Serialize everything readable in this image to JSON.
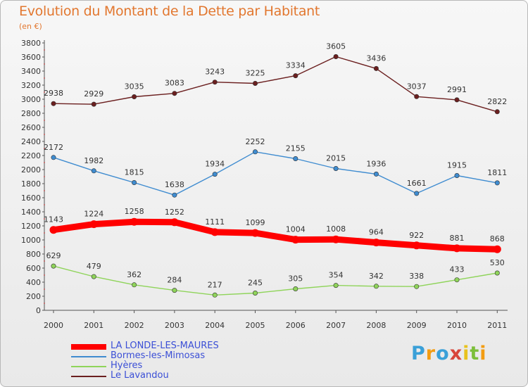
{
  "header": {
    "title": "Evolution du Montant de la Dette par Habitant",
    "subtitle": "(en €)"
  },
  "logo": {
    "text": "Proxiti",
    "letters": [
      "P",
      "r",
      "o",
      "x",
      "i",
      "t",
      "i"
    ]
  },
  "chart_data": {
    "type": "line",
    "title": "Evolution du Montant de la Dette par Habitant",
    "subtitle": "(en €)",
    "xlabel": "",
    "ylabel": "",
    "ylim": [
      0,
      3800
    ],
    "y_ticks": [
      0,
      200,
      400,
      600,
      800,
      1000,
      1200,
      1400,
      1600,
      1800,
      2000,
      2200,
      2400,
      2600,
      2800,
      3000,
      3200,
      3400,
      3600,
      3800
    ],
    "grid": false,
    "legend_position": "bottom-left",
    "categories": [
      "2000",
      "2001",
      "2002",
      "2003",
      "2004",
      "2005",
      "2006",
      "2007",
      "2008",
      "2009",
      "2010",
      "2011"
    ],
    "series": [
      {
        "name": "Le Lavandou",
        "color": "#6b1f1f",
        "values": [
          2938,
          2929,
          3035,
          3083,
          3243,
          3225,
          3334,
          3605,
          3436,
          3037,
          2991,
          2822
        ]
      },
      {
        "name": "Bormes-les-Mimosas",
        "color": "#3f8cd0",
        "values": [
          2172,
          1982,
          1815,
          1638,
          1934,
          2252,
          2155,
          2015,
          1936,
          1661,
          1915,
          1811
        ]
      },
      {
        "name": "LA LONDE-LES-MAURES",
        "color": "#ff0000",
        "values": [
          1143,
          1224,
          1258,
          1252,
          1111,
          1099,
          1004,
          1008,
          964,
          922,
          881,
          868
        ]
      },
      {
        "name": "Hyères",
        "color": "#8fd45a",
        "values": [
          629,
          479,
          362,
          284,
          217,
          245,
          305,
          354,
          342,
          338,
          433,
          530
        ]
      }
    ],
    "legend_order": [
      "LA LONDE-LES-MAURES",
      "Bormes-les-Mimosas",
      "Hyères",
      "Le Lavandou"
    ]
  }
}
